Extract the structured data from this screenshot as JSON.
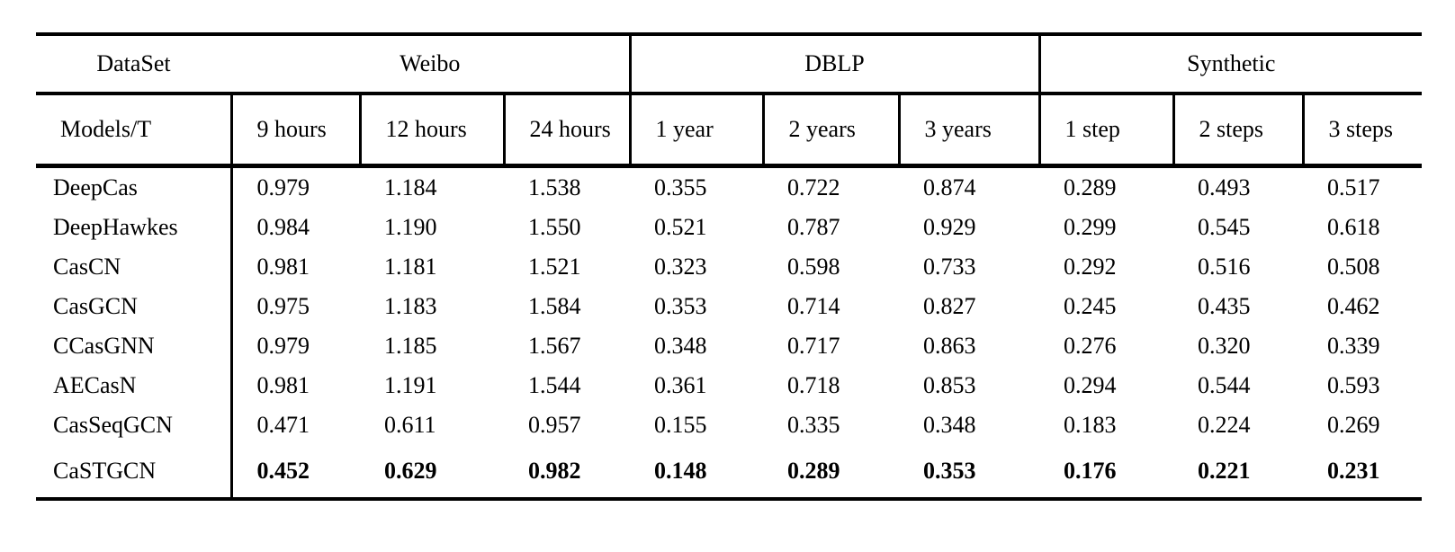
{
  "table": {
    "colors": {
      "text": "#000000",
      "background": "#ffffff",
      "rule": "#000000"
    },
    "col_groups": [
      {
        "label": "DataSet",
        "span": 1
      },
      {
        "label": "Weibo",
        "span": 3
      },
      {
        "label": "DBLP",
        "span": 3
      },
      {
        "label": "Synthetic",
        "span": 3
      }
    ],
    "sub_headers": [
      "Models/T",
      "9 hours",
      "12 hours",
      "24 hours",
      "1 year",
      "2 years",
      "3 years",
      "1 step",
      "2 steps",
      "3 steps"
    ],
    "rows": [
      {
        "model": "DeepCas",
        "bold": false,
        "values": [
          "0.979",
          "1.184",
          "1.538",
          "0.355",
          "0.722",
          "0.874",
          "0.289",
          "0.493",
          "0.517"
        ]
      },
      {
        "model": "DeepHawkes",
        "bold": false,
        "values": [
          "0.984",
          "1.190",
          "1.550",
          "0.521",
          "0.787",
          "0.929",
          "0.299",
          "0.545",
          "0.618"
        ]
      },
      {
        "model": "CasCN",
        "bold": false,
        "values": [
          "0.981",
          "1.181",
          "1.521",
          "0.323",
          "0.598",
          "0.733",
          "0.292",
          "0.516",
          "0.508"
        ]
      },
      {
        "model": "CasGCN",
        "bold": false,
        "values": [
          "0.975",
          "1.183",
          "1.584",
          "0.353",
          "0.714",
          "0.827",
          "0.245",
          "0.435",
          "0.462"
        ]
      },
      {
        "model": "CCasGNN",
        "bold": false,
        "values": [
          "0.979",
          "1.185",
          "1.567",
          "0.348",
          "0.717",
          "0.863",
          "0.276",
          "0.320",
          "0.339"
        ]
      },
      {
        "model": "AECasN",
        "bold": false,
        "values": [
          "0.981",
          "1.191",
          "1.544",
          "0.361",
          "0.718",
          "0.853",
          "0.294",
          "0.544",
          "0.593"
        ]
      },
      {
        "model": "CasSeqGCN",
        "bold": false,
        "values": [
          "0.471",
          "0.611",
          "0.957",
          "0.155",
          "0.335",
          "0.348",
          "0.183",
          "0.224",
          "0.269"
        ]
      },
      {
        "model": "CaSTGCN",
        "bold": true,
        "values": [
          "0.452",
          "0.629",
          "0.982",
          "0.148",
          "0.289",
          "0.353",
          "0.176",
          "0.221",
          "0.231"
        ]
      }
    ]
  }
}
